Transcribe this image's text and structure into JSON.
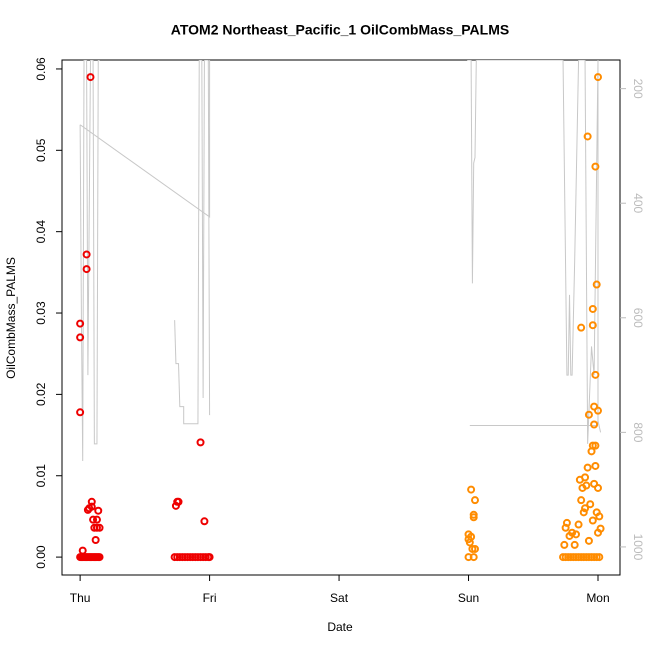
{
  "chart_data": {
    "type": "scatter",
    "title": "ATOM2 Northeast_Pacific_1 OilCombMass_PALMS",
    "xlabel": "Date",
    "ylabel": "OilCombMass_PALMS",
    "xlim": [
      -0.14,
      4.17
    ],
    "xticks": [
      {
        "value": 0,
        "label": "Thu"
      },
      {
        "value": 1,
        "label": "Fri"
      },
      {
        "value": 2,
        "label": "Sat"
      },
      {
        "value": 3,
        "label": "Sun"
      },
      {
        "value": 4,
        "label": "Mon"
      }
    ],
    "ylim": [
      -0.0022,
      0.0611
    ],
    "yticks": [
      {
        "value": 0,
        "label": "0.00"
      },
      0.01,
      0.02,
      0.03,
      0.04,
      0.05,
      0.06
    ],
    "y2lim": [
      1049,
      150
    ],
    "y2ticks": [
      200,
      400,
      600,
      800,
      1000
    ],
    "series": [
      {
        "color": "#ee0000",
        "x": [
          0.0,
          0.0,
          0.0,
          0.05,
          0.05,
          0.08,
          0.02,
          0.06,
          0.07,
          0.09,
          0.09,
          0.1,
          0.13,
          0.14,
          0.13,
          0.15,
          0.12,
          0.11,
          0.0,
          0.01,
          0.02,
          0.03,
          0.04,
          0.05,
          0.06,
          0.07,
          0.08,
          0.09,
          0.1,
          0.11,
          0.12,
          0.13,
          0.14,
          0.15,
          0.74,
          0.75,
          0.76,
          0.93,
          0.96,
          0.73,
          0.75,
          0.77,
          0.79,
          0.81,
          0.83,
          0.85,
          0.87,
          0.89,
          0.91,
          0.93,
          0.95,
          0.97,
          0.99,
          1.0
        ],
        "values": [
          0.0287,
          0.027,
          0.0178,
          0.0372,
          0.0354,
          0.059,
          0.0008,
          0.0058,
          0.006,
          0.0068,
          0.0062,
          0.0046,
          0.0046,
          0.0057,
          0.0036,
          0.0036,
          0.0021,
          0.0036,
          0,
          0,
          0,
          0,
          0,
          0,
          0,
          0,
          0,
          0,
          0,
          0,
          0,
          0,
          0,
          0,
          0.0063,
          0.0068,
          0.0068,
          0.0141,
          0.0044,
          0,
          0,
          0,
          0,
          0,
          0,
          0,
          0,
          0,
          0,
          0,
          0,
          0,
          0,
          0
        ]
      },
      {
        "color": "#ff8c00",
        "x": [
          3.02,
          3.05,
          3.04,
          3.04,
          3.0,
          3.0,
          3.01,
          3.02,
          3.03,
          3.05,
          3.0,
          3.04,
          4.0,
          3.92,
          3.98,
          3.99,
          3.96,
          3.96,
          3.87,
          3.98,
          3.97,
          4.0,
          3.93,
          3.97,
          3.96,
          3.98,
          3.95,
          3.98,
          3.92,
          3.9,
          3.86,
          3.91,
          3.88,
          3.97,
          4.0,
          3.76,
          3.75,
          3.78,
          3.8,
          3.83,
          3.85,
          3.89,
          3.94,
          3.99,
          4.01,
          4.0,
          3.82,
          3.74,
          3.93,
          3.96,
          4.02,
          3.87,
          3.9,
          3.73,
          3.75,
          3.77,
          3.79,
          3.81,
          3.83,
          3.85,
          3.87,
          3.89,
          3.91,
          3.93,
          3.95,
          3.97,
          3.99,
          4.01
        ],
        "values": [
          0.0083,
          0.007,
          0.0052,
          0.0049,
          0.0028,
          0.0022,
          0.0018,
          0.0025,
          0.001,
          0.001,
          0,
          0,
          0.059,
          0.0517,
          0.048,
          0.0335,
          0.0305,
          0.0285,
          0.0282,
          0.0224,
          0.0185,
          0.018,
          0.0175,
          0.0163,
          0.0137,
          0.0137,
          0.013,
          0.0112,
          0.011,
          0.0098,
          0.0095,
          0.0088,
          0.0085,
          0.009,
          0.0085,
          0.0042,
          0.0036,
          0.0026,
          0.003,
          0.0028,
          0.004,
          0.0055,
          0.0065,
          0.0055,
          0.005,
          0.003,
          0.0015,
          0.0015,
          0.002,
          0.0045,
          0.0035,
          0.007,
          0.006,
          0,
          0,
          0,
          0,
          0,
          0,
          0,
          0,
          0,
          0,
          0,
          0,
          0,
          0,
          0
        ]
      },
      {
        "type": "line",
        "axis": "y2",
        "color": "#c8c8c8",
        "x": [
          0.0,
          0.01,
          0.02,
          0.03,
          0.05,
          0.06,
          0.08,
          0.1,
          0.11,
          0.13,
          0.14,
          0.15,
          null,
          0.0,
          1.0,
          1.0,
          null,
          0.73,
          0.74,
          0.76,
          0.77,
          0.8,
          0.8,
          0.91,
          0.92,
          0.94,
          0.95,
          0.96,
          0.99,
          1.0,
          null,
          2.99,
          3.0,
          3.02,
          3.03,
          3.04,
          3.05,
          3.06,
          3.73,
          3.76,
          3.77,
          3.78,
          3.79,
          3.8,
          3.82,
          3.85,
          3.9,
          3.92,
          3.95,
          3.97,
          4.0,
          4.0,
          4.02,
          null,
          3.01,
          3.99,
          4.0
        ],
        "values": [
          263,
          600,
          850,
          150,
          150,
          700,
          150,
          150,
          820,
          820,
          150,
          150,
          null,
          263,
          424,
          150,
          null,
          604,
          680,
          680,
          755,
          755,
          785,
          785,
          150,
          150,
          740,
          150,
          150,
          770,
          null,
          150,
          150,
          150,
          540,
          330,
          320,
          150,
          150,
          700,
          700,
          560,
          700,
          700,
          500,
          150,
          150,
          820,
          650,
          700,
          150,
          780,
          800,
          null,
          788,
          788,
          780
        ]
      }
    ]
  }
}
